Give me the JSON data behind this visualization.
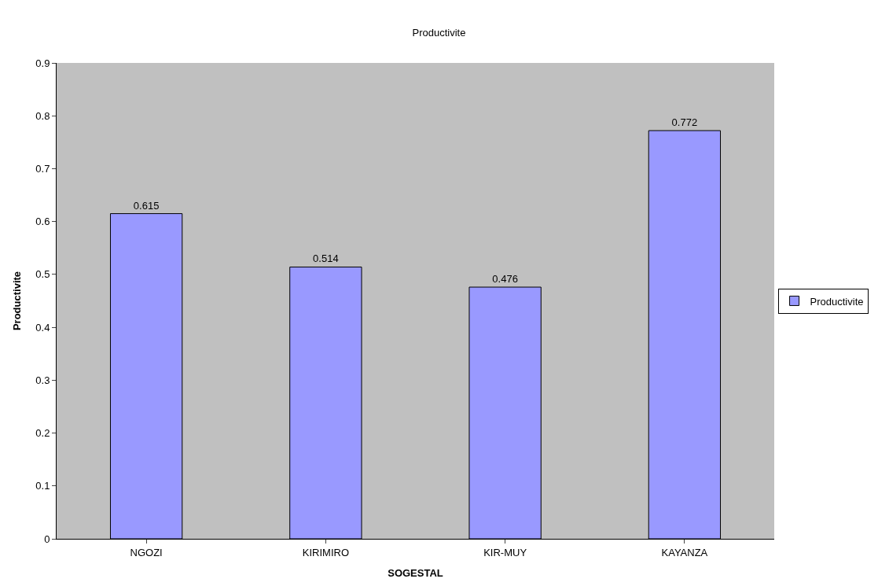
{
  "chart_data": {
    "type": "bar",
    "title": "Productivite",
    "xlabel": "SOGESTAL",
    "ylabel": "Productivite",
    "categories": [
      "NGOZI",
      "KIRIMIRO",
      "KIR-MUY",
      "KAYANZA"
    ],
    "series": [
      {
        "name": "Productivite",
        "color": "#9999ff",
        "values": [
          0.615,
          0.514,
          0.476,
          0.772
        ]
      }
    ],
    "ylim": [
      0,
      0.9
    ],
    "yticks": [
      0,
      0.1,
      0.2,
      0.3,
      0.4,
      0.5,
      0.6,
      0.7,
      0.8,
      0.9
    ],
    "data_labels": true,
    "grid": false,
    "legend": "right"
  }
}
